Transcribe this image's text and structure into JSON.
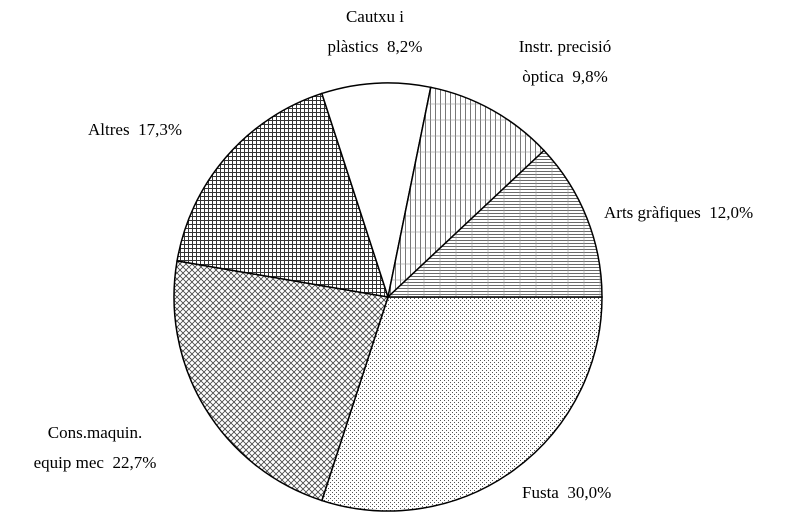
{
  "chart_data": {
    "type": "pie",
    "categories": [
      "Fusta",
      "Cons.maquin.\nequip mec",
      "Altres",
      "Cautxu i\nplàstics",
      "Instr. precisió\nòptica",
      "Arts gràfiques"
    ],
    "values": [
      30.0,
      22.7,
      17.3,
      8.2,
      9.8,
      12.0
    ],
    "value_labels": [
      "30,0%",
      "22,7%",
      "17,3%",
      "8,2%",
      "9,8%",
      "12,0%"
    ]
  }
}
